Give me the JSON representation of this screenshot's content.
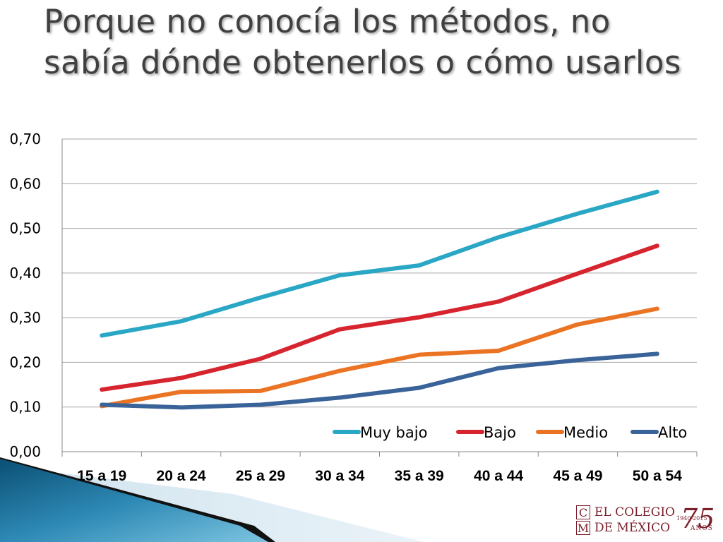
{
  "slide": {
    "title": "Porque no conocía los métodos, no sabía dónde obtenerlos o cómo usarlos"
  },
  "logo": {
    "letter_c": "C",
    "letter_m": "M",
    "line1": "EL COLEGIO",
    "line2": "DE MÉXICO",
    "anniversary": "75",
    "years": "1940-2015",
    "anos": "AÑOS"
  },
  "chart_data": {
    "type": "line",
    "categories": [
      "15 a 19",
      "20 a 24",
      "25 a 29",
      "30 a 34",
      "35 a 39",
      "40 a 44",
      "45 a 49",
      "50 a 54"
    ],
    "y_ticks": [
      "0,00",
      "0,10",
      "0,20",
      "0,30",
      "0,40",
      "0,50",
      "0,60",
      "0,70"
    ],
    "ylim": [
      0,
      0.7
    ],
    "grid": true,
    "legend_position": "bottom-right",
    "series": [
      {
        "name": "Muy bajo",
        "color": "#2AA7C4",
        "values": [
          0.26,
          0.292,
          0.345,
          0.395,
          0.417,
          0.48,
          0.533,
          0.582
        ]
      },
      {
        "name": "Bajo",
        "color": "#D7252F",
        "values": [
          0.139,
          0.165,
          0.208,
          0.274,
          0.301,
          0.336,
          0.399,
          0.461
        ]
      },
      {
        "name": "Medio",
        "color": "#EB7424",
        "values": [
          0.102,
          0.134,
          0.136,
          0.181,
          0.217,
          0.226,
          0.285,
          0.32
        ]
      },
      {
        "name": "Alto",
        "color": "#3A6499",
        "values": [
          0.105,
          0.099,
          0.105,
          0.121,
          0.143,
          0.187,
          0.205,
          0.219
        ]
      }
    ]
  }
}
